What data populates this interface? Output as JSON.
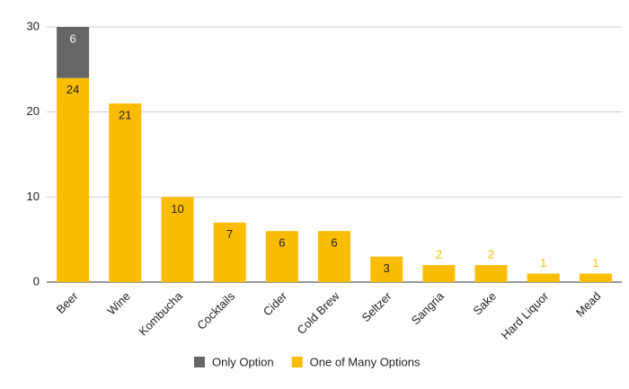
{
  "chart_data": {
    "type": "stacked_bar",
    "categories": [
      "Beer",
      "Wine",
      "Kombucha",
      "Cocktails",
      "Cider",
      "Cold Brew",
      "Seltzer",
      "Sangria",
      "Sake",
      "Hard Liquor",
      "Mead"
    ],
    "series": [
      {
        "name": "One of Many Options",
        "color": "#fbbc04",
        "values": [
          24,
          21,
          10,
          7,
          6,
          6,
          3,
          2,
          2,
          1,
          1
        ]
      },
      {
        "name": "Only Option",
        "color": "#666666",
        "values": [
          6,
          0,
          0,
          0,
          0,
          0,
          0,
          0,
          0,
          0,
          0
        ]
      }
    ],
    "ylim": [
      0,
      30
    ],
    "yticks": [
      0,
      10,
      20,
      30
    ],
    "grid": true
  }
}
